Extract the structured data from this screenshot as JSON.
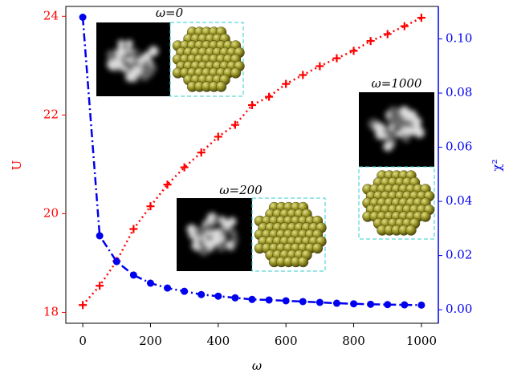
{
  "chart_data": {
    "type": "line",
    "xlabel": "ω",
    "ylabel": "U",
    "y2label": "χ²",
    "x": [
      0,
      50,
      100,
      150,
      200,
      250,
      300,
      350,
      400,
      450,
      500,
      550,
      600,
      650,
      700,
      750,
      800,
      850,
      900,
      950,
      1000
    ],
    "series": [
      {
        "color": "#ff0000",
        "linestyle": "dotted",
        "marker": "plus",
        "axis": "y",
        "values": [
          18.15,
          18.54,
          19.04,
          19.69,
          20.15,
          20.59,
          20.94,
          21.24,
          21.56,
          21.8,
          22.2,
          22.37,
          22.63,
          22.81,
          22.99,
          23.15,
          23.3,
          23.5,
          23.64,
          23.8,
          23.97
        ]
      },
      {
        "color": "#0000ee",
        "linestyle": "dashdot",
        "marker": "circle",
        "axis": "y2",
        "values": [
          0.108,
          0.0273,
          0.0178,
          0.0128,
          0.0098,
          0.008,
          0.0068,
          0.0056,
          0.005,
          0.0044,
          0.0038,
          0.0036,
          0.0033,
          0.003,
          0.0027,
          0.0024,
          0.0022,
          0.002,
          0.0019,
          0.0018,
          0.0017
        ]
      }
    ],
    "xlim": [
      -50,
      1050
    ],
    "xticks": [
      0,
      200,
      400,
      600,
      800,
      1000
    ],
    "ylim": [
      17.78,
      24.2
    ],
    "yticks": [
      18,
      20,
      22,
      24
    ],
    "y2lim": [
      -0.005,
      0.112
    ],
    "y2ticks": [
      {
        "value": 0,
        "label": "0.00"
      },
      {
        "value": 0.02,
        "label": "0.02"
      },
      {
        "value": 0.04,
        "label": "0.04"
      },
      {
        "value": 0.06,
        "label": "0.06"
      },
      {
        "value": 0.08,
        "label": "0.08"
      },
      {
        "value": 0.1,
        "label": "0.10"
      }
    ],
    "annotations": [
      "ω=0",
      "ω=200",
      "ω=1000"
    ]
  }
}
